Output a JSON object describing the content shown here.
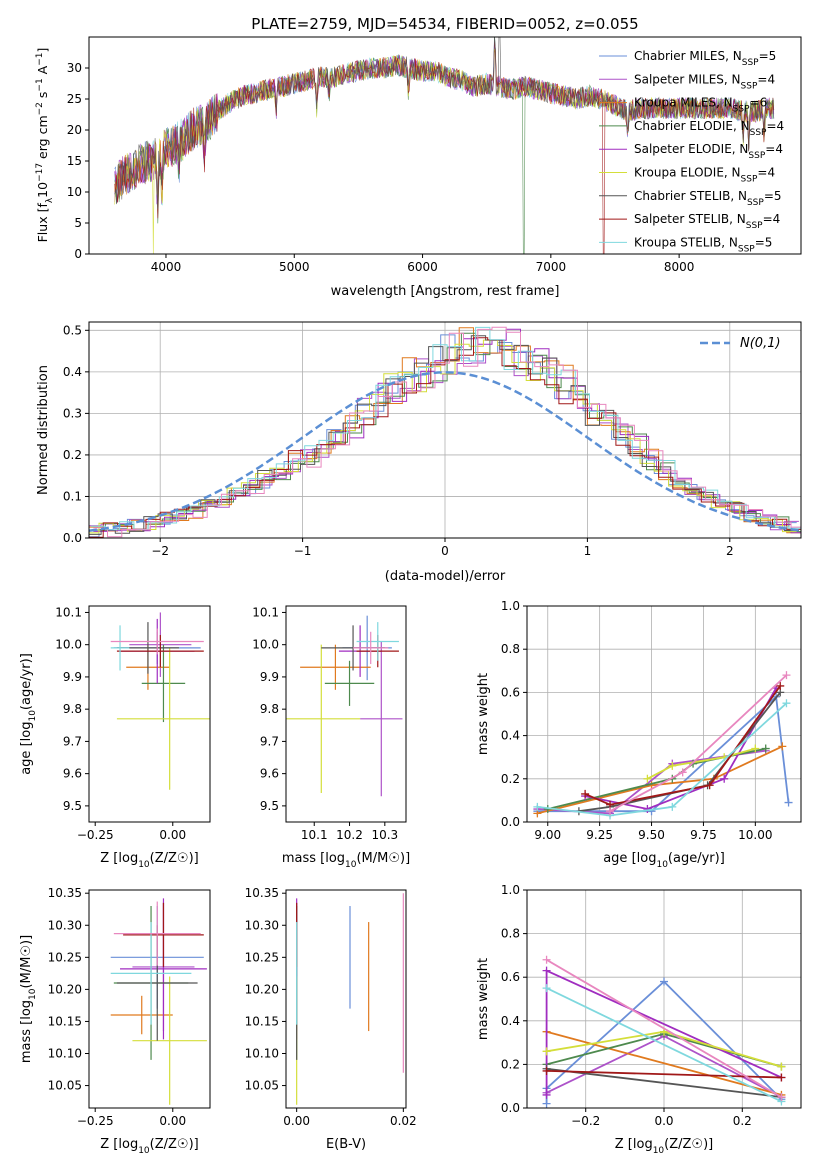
{
  "title": "PLATE=2759, MJD=54534, FIBERID=0052, z=0.055",
  "colors": {
    "Chabrier MILES": "#6a8fd8",
    "Salpeter MILES": "#ad52c9",
    "Kroupa MILES": "#e07a1f",
    "Chabrier ELODIE": "#4e8a4e",
    "Salpeter ELODIE": "#a02dc0",
    "Kroupa ELODIE": "#d4de3a",
    "Chabrier STELIB": "#555555",
    "Salpeter STELIB": "#a01818",
    "Kroupa STELIB": "#7fd8de",
    "extra_pink": "#e887bf",
    "normal_curve": "#5b8fd4"
  },
  "chart_data": [
    {
      "type": "line",
      "id": "spectrum",
      "title": "PLATE=2759, MJD=54534, FIBERID=0052, z=0.055",
      "xlabel": "wavelength [Angstrom, rest frame]",
      "ylabel": "Flux [f_λ10^-17 erg cm^-2 s^-1 A^-1]",
      "xlim": [
        3400,
        8950
      ],
      "ylim": [
        0,
        35
      ],
      "xticks": [
        4000,
        5000,
        6000,
        7000,
        8000
      ],
      "yticks": [
        0,
        5,
        10,
        15,
        20,
        25,
        30
      ],
      "legend_position": "top-right",
      "continuum_x": [
        3600,
        3700,
        3800,
        3900,
        4000,
        4100,
        4200,
        4300,
        4400,
        4500,
        4600,
        4700,
        4800,
        4900,
        5000,
        5100,
        5200,
        5300,
        5400,
        5500,
        5600,
        5700,
        5800,
        5900,
        6000,
        6100,
        6200,
        6300,
        6400,
        6500,
        6600,
        6700,
        6800,
        6900,
        7000,
        7100,
        7200,
        7300,
        7400,
        7500,
        7600,
        7700,
        7800,
        7900,
        8000,
        8100,
        8200,
        8300,
        8400,
        8500,
        8600,
        8700
      ],
      "continuum_y": [
        11,
        13,
        14.5,
        15,
        17,
        18,
        20,
        21,
        23,
        24.5,
        25.5,
        26,
        26.5,
        27,
        27.5,
        28,
        28.5,
        28.5,
        29,
        29.5,
        30,
        30,
        30.5,
        30,
        29.5,
        29.5,
        28.5,
        28,
        27,
        27.5,
        27,
        26.5,
        27,
        26.5,
        26,
        25.5,
        25,
        25.5,
        25,
        24,
        23,
        23.5,
        23.5,
        23.5,
        23.5,
        23.5,
        23.5,
        23.5,
        23.5,
        23,
        23,
        23.5
      ],
      "series": [
        {
          "name": "Chabrier MILES, N_SSP=5",
          "label_main": "Chabrier MILES, N",
          "label_sub": "SSP",
          "label_tail": "=5"
        },
        {
          "name": "Salpeter MILES, N_SSP=4",
          "label_main": "Salpeter MILES, N",
          "label_sub": "SSP",
          "label_tail": "=4"
        },
        {
          "name": "Kroupa MILES, N_SSP=6",
          "label_main": "Kroupa MILES, N",
          "label_sub": "SSP",
          "label_tail": "=6"
        },
        {
          "name": "Chabrier ELODIE, N_SSP=4",
          "label_main": "Chabrier ELODIE, N",
          "label_sub": "SSP",
          "label_tail": "=4"
        },
        {
          "name": "Salpeter ELODIE, N_SSP=4",
          "label_main": "Salpeter ELODIE, N",
          "label_sub": "SSP",
          "label_tail": "=4"
        },
        {
          "name": "Kroupa ELODIE, N_SSP=4",
          "label_main": "Kroupa ELODIE, N",
          "label_sub": "SSP",
          "label_tail": "=4"
        },
        {
          "name": "Chabrier STELIB, N_SSP=5",
          "label_main": "Chabrier STELIB, N",
          "label_sub": "SSP",
          "label_tail": "=5"
        },
        {
          "name": "Salpeter STELIB, N_SSP=4",
          "label_main": "Salpeter STELIB, N",
          "label_sub": "SSP",
          "label_tail": "=4"
        },
        {
          "name": "Kroupa STELIB, N_SSP=5",
          "label_main": "Kroupa STELIB, N",
          "label_sub": "SSP",
          "label_tail": "=5"
        }
      ]
    },
    {
      "type": "histogram",
      "id": "residuals",
      "xlabel": "(data-model)/error",
      "ylabel": "Normed distribution",
      "xlim": [
        -2.5,
        2.5
      ],
      "ylim": [
        0,
        0.52
      ],
      "xticks": [
        -2,
        -1,
        0,
        1,
        2
      ],
      "yticks": [
        0.0,
        0.1,
        0.2,
        0.3,
        0.4,
        0.5
      ],
      "grid": true,
      "bin_width": 0.1,
      "bin_start": -2.5,
      "legend_position": "top-right",
      "normal_curve_label": "N(0,1)",
      "base_density": [
        0.015,
        0.02,
        0.025,
        0.03,
        0.035,
        0.045,
        0.055,
        0.065,
        0.08,
        0.09,
        0.11,
        0.125,
        0.14,
        0.16,
        0.18,
        0.2,
        0.22,
        0.25,
        0.27,
        0.3,
        0.33,
        0.36,
        0.38,
        0.4,
        0.42,
        0.44,
        0.45,
        0.46,
        0.46,
        0.45,
        0.44,
        0.42,
        0.4,
        0.37,
        0.34,
        0.31,
        0.28,
        0.25,
        0.22,
        0.19,
        0.16,
        0.14,
        0.12,
        0.1,
        0.085,
        0.07,
        0.055,
        0.045,
        0.035,
        0.025
      ]
    },
    {
      "type": "scatter",
      "id": "age_vs_Z",
      "xlabel_main": "Z [log",
      "xlabel_sub": "10",
      "xlabel_tail": "(Z/Z☉)]",
      "ylabel_main": "age  [log",
      "ylabel_sub": "10",
      "ylabel_tail": "(age/yr)]",
      "xlim": [
        -0.27,
        0.12
      ],
      "ylim": [
        9.45,
        10.12
      ],
      "xticks": [
        -0.25,
        0.0
      ],
      "ytick_values": [
        9.5,
        9.6,
        9.7,
        9.8,
        9.9,
        10.0,
        10.1
      ],
      "yticks": [
        "9.5",
        "9.6",
        "9.7",
        "9.8",
        "9.9",
        "10.0",
        "10.1"
      ],
      "xtick_labels": [
        "−0.25",
        "0.00"
      ],
      "points": [
        {
          "x": -0.05,
          "y": 9.99,
          "xerr": 0.14,
          "yerr": 0.05
        },
        {
          "x": -0.04,
          "y": 10.0,
          "xerr": 0.1,
          "yerr": 0.1
        },
        {
          "x": -0.08,
          "y": 9.93,
          "xerr": 0.07,
          "yerr": 0.07
        },
        {
          "x": -0.03,
          "y": 9.88,
          "xerr": 0.07,
          "yerr": 0.12
        },
        {
          "x": -0.05,
          "y": 9.98,
          "xerr": 0.12,
          "yerr": 0.1
        },
        {
          "x": -0.01,
          "y": 9.77,
          "xerr": 0.17,
          "yerr": 0.22
        },
        {
          "x": -0.08,
          "y": 9.99,
          "xerr": 0.1,
          "yerr": 0.08
        },
        {
          "x": -0.04,
          "y": 9.98,
          "xerr": 0.14,
          "yerr": 0.05
        },
        {
          "x": -0.17,
          "y": 9.99,
          "xerr": 0.03,
          "yerr": 0.07
        },
        {
          "x": -0.05,
          "y": 10.01,
          "xerr": 0.15,
          "yerr": 0.04
        }
      ]
    },
    {
      "type": "scatter",
      "id": "age_vs_mass",
      "xlabel_main": "mass [log",
      "xlabel_sub": "10",
      "xlabel_tail": "(M/M☉)]",
      "ylabel_main": "",
      "ylabel_sub": "",
      "ylabel_tail": "",
      "xlim": [
        10.02,
        10.36
      ],
      "ylim": [
        9.45,
        10.12
      ],
      "xticks": [
        10.1,
        10.2,
        10.3
      ],
      "ytick_values": [
        9.5,
        9.6,
        9.7,
        9.8,
        9.9,
        10.0,
        10.1
      ],
      "yticks": [
        "9.5",
        "9.6",
        "9.7",
        "9.8",
        "9.9",
        "10.0",
        "10.1"
      ],
      "xtick_labels": [
        "10.1",
        "10.2",
        "10.3"
      ],
      "points": [
        {
          "x": 10.25,
          "y": 9.99,
          "xerr": 0.07,
          "yerr": 0.1
        },
        {
          "x": 10.29,
          "y": 9.77,
          "xerr": 0.06,
          "yerr": 0.24
        },
        {
          "x": 10.16,
          "y": 9.93,
          "xerr": 0.1,
          "yerr": 0.07
        },
        {
          "x": 10.2,
          "y": 9.88,
          "xerr": 0.07,
          "yerr": 0.07
        },
        {
          "x": 10.23,
          "y": 9.98,
          "xerr": 0.06,
          "yerr": 0.08
        },
        {
          "x": 10.12,
          "y": 9.77,
          "xerr": 0.11,
          "yerr": 0.23
        },
        {
          "x": 10.21,
          "y": 9.99,
          "xerr": 0.09,
          "yerr": 0.07
        },
        {
          "x": 10.28,
          "y": 9.98,
          "xerr": 0.06,
          "yerr": 0.05
        },
        {
          "x": 10.28,
          "y": 10.01,
          "xerr": 0.06,
          "yerr": 0.06
        },
        {
          "x": 10.26,
          "y": 9.99,
          "xerr": 0.05,
          "yerr": 0.05
        }
      ]
    },
    {
      "type": "line",
      "id": "weight_vs_age",
      "xlabel_main": "age  [log",
      "xlabel_sub": "10",
      "xlabel_tail": "(age/yr)]",
      "ylabel": "mass weight",
      "xlim": [
        8.9,
        10.22
      ],
      "ylim": [
        0.0,
        1.0
      ],
      "xticks": [
        9.0,
        9.25,
        9.5,
        9.75,
        10.0
      ],
      "xtick_labels": [
        "9.00",
        "9.25",
        "9.50",
        "9.75",
        "10.00"
      ],
      "ytick_values": [
        0.0,
        0.2,
        0.4,
        0.6,
        0.8,
        1.0
      ],
      "yticks": [
        "0.0",
        "0.2",
        "0.4",
        "0.6",
        "0.8",
        "1.0"
      ],
      "grid": true,
      "lines": [
        {
          "x": [
            8.95,
            9.5,
            10.1,
            10.16
          ],
          "y": [
            0.05,
            0.05,
            0.58,
            0.09
          ]
        },
        {
          "x": [
            8.95,
            9.3,
            9.6,
            10.05
          ],
          "y": [
            0.06,
            0.04,
            0.27,
            0.33
          ]
        },
        {
          "x": [
            8.95,
            9.5,
            9.8,
            10.13
          ],
          "y": [
            0.04,
            0.17,
            0.2,
            0.35
          ]
        },
        {
          "x": [
            9.0,
            9.6,
            9.7,
            10.05
          ],
          "y": [
            0.06,
            0.2,
            0.27,
            0.34
          ]
        },
        {
          "x": [
            9.18,
            9.48,
            9.85,
            10.1
          ],
          "y": [
            0.12,
            0.06,
            0.2,
            0.62
          ]
        },
        {
          "x": [
            9.48,
            9.6,
            9.85,
            10.0
          ],
          "y": [
            0.2,
            0.26,
            0.3,
            0.34
          ]
        },
        {
          "x": [
            9.15,
            9.3,
            9.77,
            10.12
          ],
          "y": [
            0.05,
            0.07,
            0.17,
            0.6
          ]
        },
        {
          "x": [
            9.18,
            9.3,
            9.78,
            10.12
          ],
          "y": [
            0.13,
            0.08,
            0.17,
            0.63
          ]
        },
        {
          "x": [
            8.95,
            9.3,
            9.6,
            10.15
          ],
          "y": [
            0.07,
            0.03,
            0.07,
            0.55
          ]
        },
        {
          "x": [
            9.3,
            9.65,
            10.15
          ],
          "y": [
            0.05,
            0.23,
            0.68
          ]
        }
      ]
    },
    {
      "type": "scatter",
      "id": "mass_vs_Z",
      "xlabel_main": "Z [log",
      "xlabel_sub": "10",
      "xlabel_tail": "(Z/Z☉)]",
      "ylabel_main": "mass [log",
      "ylabel_sub": "10",
      "ylabel_tail": "(M/M☉)]",
      "xlim": [
        -0.27,
        0.12
      ],
      "ylim": [
        10.015,
        10.355
      ],
      "xticks": [
        -0.25,
        0.0
      ],
      "xtick_labels": [
        "−0.25",
        "0.00"
      ],
      "ytick_values": [
        10.05,
        10.1,
        10.15,
        10.2,
        10.25,
        10.3,
        10.35
      ],
      "yticks": [
        "10.05",
        "10.10",
        "10.15",
        "10.20",
        "10.25",
        "10.30",
        "10.35"
      ],
      "points": [
        {
          "x": -0.05,
          "y": 10.25,
          "xerr": 0.15,
          "yerr": 0.08
        },
        {
          "x": -0.03,
          "y": 10.235,
          "xerr": 0.1,
          "yerr": 0.1
        },
        {
          "x": -0.1,
          "y": 10.16,
          "xerr": 0.1,
          "yerr": 0.03
        },
        {
          "x": -0.07,
          "y": 10.21,
          "xerr": 0.12,
          "yerr": 0.12
        },
        {
          "x": -0.03,
          "y": 10.232,
          "xerr": 0.14,
          "yerr": 0.11
        },
        {
          "x": -0.01,
          "y": 10.12,
          "xerr": 0.12,
          "yerr": 0.1
        },
        {
          "x": -0.05,
          "y": 10.21,
          "xerr": 0.13,
          "yerr": 0.09
        },
        {
          "x": -0.03,
          "y": 10.285,
          "xerr": 0.13,
          "yerr": 0.05
        },
        {
          "x": -0.07,
          "y": 10.225,
          "xerr": 0.13,
          "yerr": 0.08
        },
        {
          "x": -0.05,
          "y": 10.287,
          "xerr": 0.14,
          "yerr": 0.05
        }
      ]
    },
    {
      "type": "scatter",
      "id": "mass_vs_ebv",
      "xlabel": "E(B-V)",
      "xlim": [
        -0.002,
        0.0205
      ],
      "ylim": [
        10.015,
        10.355
      ],
      "xticks": [
        0.0,
        0.02
      ],
      "xtick_labels": [
        "0.00",
        "0.02"
      ],
      "ytick_values": [
        10.05,
        10.1,
        10.15,
        10.2,
        10.25,
        10.3,
        10.35
      ],
      "yticks": [
        "10.05",
        "10.10",
        "10.15",
        "10.20",
        "10.25",
        "10.30",
        "10.35"
      ],
      "points": [
        {
          "x": 0.01,
          "y": 10.25,
          "yerr": 0.08
        },
        {
          "x": 0.0,
          "y": 10.235,
          "yerr": 0.1
        },
        {
          "x": 0.0135,
          "y": 10.22,
          "yerr": 0.085
        },
        {
          "x": 0.0,
          "y": 10.21,
          "yerr": 0.12
        },
        {
          "x": 0.0,
          "y": 10.232,
          "yerr": 0.11
        },
        {
          "x": 0.0,
          "y": 10.12,
          "yerr": 0.1
        },
        {
          "x": 0.0,
          "y": 10.21,
          "yerr": 0.12
        },
        {
          "x": 0.0,
          "y": 10.285,
          "yerr": 0.05
        },
        {
          "x": 0.0,
          "y": 10.225,
          "yerr": 0.08
        },
        {
          "x": 0.02,
          "y": 10.21,
          "yerr": 0.14
        }
      ]
    },
    {
      "type": "line",
      "id": "weight_vs_Z",
      "xlabel_main": "Z [log",
      "xlabel_sub": "10",
      "xlabel_tail": "(Z/Z☉)]",
      "ylabel": "mass weight",
      "xlim": [
        -0.35,
        0.35
      ],
      "ylim": [
        0.0,
        1.0
      ],
      "xticks": [
        -0.2,
        0.0,
        0.2
      ],
      "xtick_labels": [
        "−0.2",
        "0.0",
        "0.2"
      ],
      "ytick_values": [
        0.0,
        0.2,
        0.4,
        0.6,
        0.8,
        1.0
      ],
      "yticks": [
        "0.0",
        "0.2",
        "0.4",
        "0.6",
        "0.8",
        "1.0"
      ],
      "grid": true,
      "lines": [
        {
          "x": [
            -0.3,
            -0.3,
            0.0,
            0.3
          ],
          "y": [
            0.02,
            0.09,
            0.58,
            0.04
          ]
        },
        {
          "x": [
            -0.3,
            0.0,
            0.3
          ],
          "y": [
            0.07,
            0.33,
            0.05
          ]
        },
        {
          "x": [
            -0.3,
            0.3
          ],
          "y": [
            0.35,
            0.06
          ]
        },
        {
          "x": [
            -0.3,
            0.0,
            0.3
          ],
          "y": [
            0.2,
            0.34,
            0.19
          ]
        },
        {
          "x": [
            -0.3,
            -0.3,
            0.3
          ],
          "y": [
            0.06,
            0.63,
            0.14
          ]
        },
        {
          "x": [
            -0.3,
            0.0,
            0.3
          ],
          "y": [
            0.26,
            0.35,
            0.19
          ]
        },
        {
          "x": [
            -0.3,
            0.3
          ],
          "y": [
            0.18,
            0.05
          ]
        },
        {
          "x": [
            -0.3,
            0.3
          ],
          "y": [
            0.17,
            0.14
          ]
        },
        {
          "x": [
            -0.3,
            0.3
          ],
          "y": [
            0.55,
            0.03
          ]
        },
        {
          "x": [
            -0.3,
            0.3
          ],
          "y": [
            0.68,
            0.05
          ]
        }
      ]
    }
  ]
}
